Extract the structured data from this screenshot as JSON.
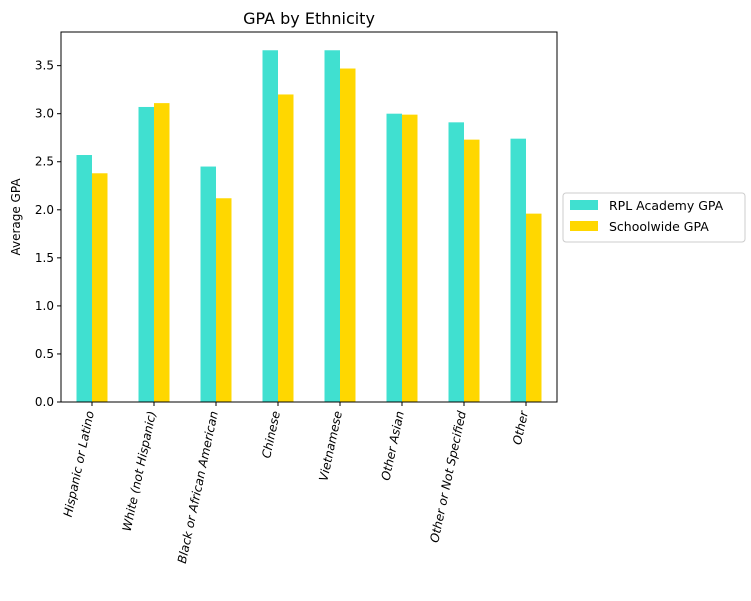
{
  "chart_data": {
    "type": "bar",
    "title": "GPA by Ethnicity",
    "xlabel": "",
    "ylabel": "Average GPA",
    "ylim": [
      0,
      3.85
    ],
    "yticks": [
      "0.0",
      "0.5",
      "1.0",
      "1.5",
      "2.0",
      "2.5",
      "3.0",
      "3.5"
    ],
    "grid": false,
    "legend_position": "right",
    "categories": [
      "Hispanic or Latino",
      "White (not Hispanic)",
      "Black or African American",
      "Chinese",
      "Vietnamese",
      "Other Asian",
      "Other or Not Specified",
      "Other"
    ],
    "series": [
      {
        "name": "RPL Academy GPA",
        "color": "#40e0d0",
        "values": [
          2.57,
          3.07,
          2.45,
          3.66,
          3.66,
          3.0,
          2.91,
          2.74
        ]
      },
      {
        "name": "Schoolwide GPA",
        "color": "#ffd700",
        "values": [
          2.38,
          3.11,
          2.12,
          3.2,
          3.47,
          2.99,
          2.73,
          1.96
        ]
      }
    ]
  }
}
